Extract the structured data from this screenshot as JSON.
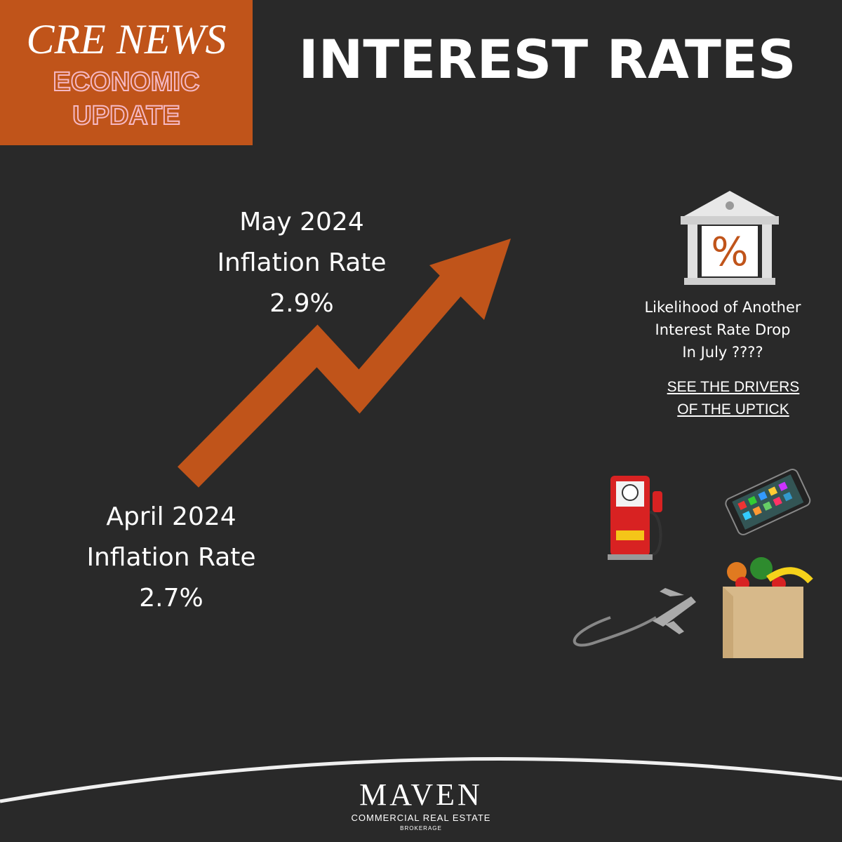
{
  "badge": {
    "line1": "CRE NEWS",
    "line2": "ECONOMIC",
    "line3": "UPDATE"
  },
  "title": "INTEREST RATES",
  "may": {
    "month": "May 2024",
    "label": "Inflation Rate",
    "rate": "2.9%"
  },
  "april": {
    "month": "April 2024",
    "label": "Inflation Rate",
    "rate": "2.7%"
  },
  "likelihood": {
    "line1": "Likelihood of Another",
    "line2": "Interest Rate Drop",
    "line3": "In July ????"
  },
  "link": {
    "line1": "SEE THE DRIVERS",
    "line2": "OF THE UPTICK"
  },
  "logo": {
    "name": "MAVEN",
    "tagline": "COMMERCIAL REAL ESTATE",
    "sub": "BROKERAGE"
  }
}
